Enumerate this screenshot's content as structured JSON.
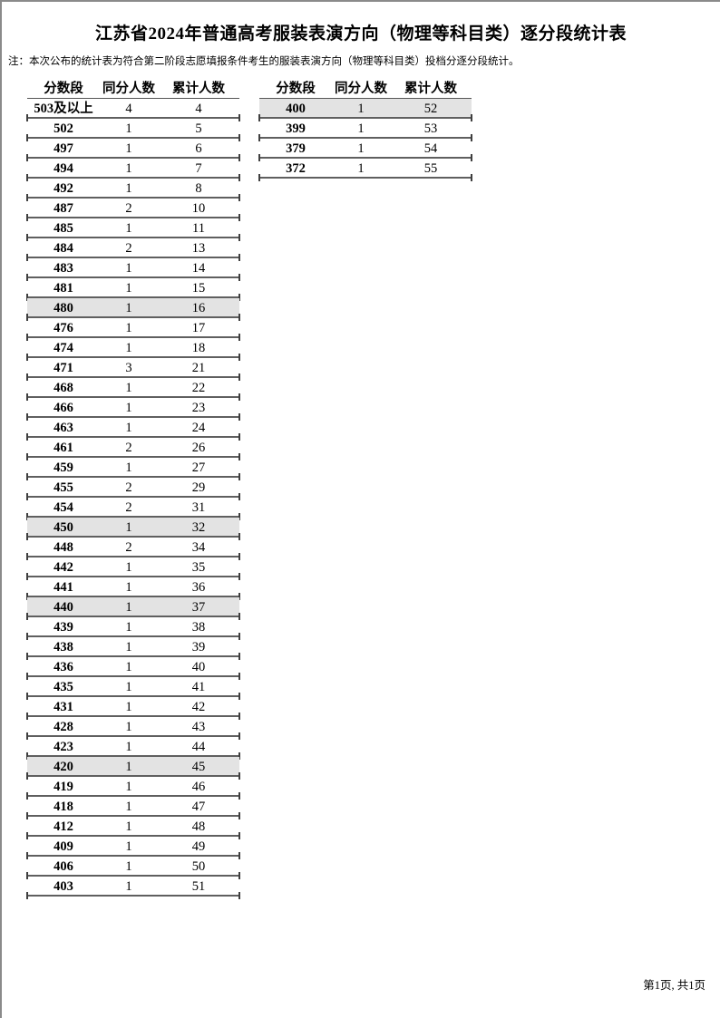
{
  "page": {
    "title": "江苏省2024年普通高考服装表演方向（物理等科目类）逐分段统计表",
    "note": "注：本次公布的统计表为符合第二阶段志愿填报条件考生的服装表演方向（物理等科目类）投档分逐分段统计。",
    "footer": "第1页, 共1页"
  },
  "colors": {
    "row_line": "#5f5f5f",
    "tick": "#3f3f3f",
    "header_line": "#555555",
    "shaded_row_bg": "#e3e3e3",
    "page_border": "#8a8a8a"
  },
  "tables": [
    {
      "headers": [
        "分数段",
        "同分人数",
        "累计人数"
      ],
      "rows": [
        {
          "score": "503及以上",
          "count": "4",
          "cumulative": "4",
          "shaded": false
        },
        {
          "score": "502",
          "count": "1",
          "cumulative": "5",
          "shaded": false
        },
        {
          "score": "497",
          "count": "1",
          "cumulative": "6",
          "shaded": false
        },
        {
          "score": "494",
          "count": "1",
          "cumulative": "7",
          "shaded": false
        },
        {
          "score": "492",
          "count": "1",
          "cumulative": "8",
          "shaded": false
        },
        {
          "score": "487",
          "count": "2",
          "cumulative": "10",
          "shaded": false
        },
        {
          "score": "485",
          "count": "1",
          "cumulative": "11",
          "shaded": false
        },
        {
          "score": "484",
          "count": "2",
          "cumulative": "13",
          "shaded": false
        },
        {
          "score": "483",
          "count": "1",
          "cumulative": "14",
          "shaded": false
        },
        {
          "score": "481",
          "count": "1",
          "cumulative": "15",
          "shaded": false
        },
        {
          "score": "480",
          "count": "1",
          "cumulative": "16",
          "shaded": true
        },
        {
          "score": "476",
          "count": "1",
          "cumulative": "17",
          "shaded": false
        },
        {
          "score": "474",
          "count": "1",
          "cumulative": "18",
          "shaded": false
        },
        {
          "score": "471",
          "count": "3",
          "cumulative": "21",
          "shaded": false
        },
        {
          "score": "468",
          "count": "1",
          "cumulative": "22",
          "shaded": false
        },
        {
          "score": "466",
          "count": "1",
          "cumulative": "23",
          "shaded": false
        },
        {
          "score": "463",
          "count": "1",
          "cumulative": "24",
          "shaded": false
        },
        {
          "score": "461",
          "count": "2",
          "cumulative": "26",
          "shaded": false
        },
        {
          "score": "459",
          "count": "1",
          "cumulative": "27",
          "shaded": false
        },
        {
          "score": "455",
          "count": "2",
          "cumulative": "29",
          "shaded": false
        },
        {
          "score": "454",
          "count": "2",
          "cumulative": "31",
          "shaded": false
        },
        {
          "score": "450",
          "count": "1",
          "cumulative": "32",
          "shaded": true
        },
        {
          "score": "448",
          "count": "2",
          "cumulative": "34",
          "shaded": false
        },
        {
          "score": "442",
          "count": "1",
          "cumulative": "35",
          "shaded": false
        },
        {
          "score": "441",
          "count": "1",
          "cumulative": "36",
          "shaded": false
        },
        {
          "score": "440",
          "count": "1",
          "cumulative": "37",
          "shaded": true
        },
        {
          "score": "439",
          "count": "1",
          "cumulative": "38",
          "shaded": false
        },
        {
          "score": "438",
          "count": "1",
          "cumulative": "39",
          "shaded": false
        },
        {
          "score": "436",
          "count": "1",
          "cumulative": "40",
          "shaded": false
        },
        {
          "score": "435",
          "count": "1",
          "cumulative": "41",
          "shaded": false
        },
        {
          "score": "431",
          "count": "1",
          "cumulative": "42",
          "shaded": false
        },
        {
          "score": "428",
          "count": "1",
          "cumulative": "43",
          "shaded": false
        },
        {
          "score": "423",
          "count": "1",
          "cumulative": "44",
          "shaded": false
        },
        {
          "score": "420",
          "count": "1",
          "cumulative": "45",
          "shaded": true
        },
        {
          "score": "419",
          "count": "1",
          "cumulative": "46",
          "shaded": false
        },
        {
          "score": "418",
          "count": "1",
          "cumulative": "47",
          "shaded": false
        },
        {
          "score": "412",
          "count": "1",
          "cumulative": "48",
          "shaded": false
        },
        {
          "score": "409",
          "count": "1",
          "cumulative": "49",
          "shaded": false
        },
        {
          "score": "406",
          "count": "1",
          "cumulative": "50",
          "shaded": false
        },
        {
          "score": "403",
          "count": "1",
          "cumulative": "51",
          "shaded": false
        }
      ]
    },
    {
      "headers": [
        "分数段",
        "同分人数",
        "累计人数"
      ],
      "rows": [
        {
          "score": "400",
          "count": "1",
          "cumulative": "52",
          "shaded": true
        },
        {
          "score": "399",
          "count": "1",
          "cumulative": "53",
          "shaded": false
        },
        {
          "score": "379",
          "count": "1",
          "cumulative": "54",
          "shaded": false
        },
        {
          "score": "372",
          "count": "1",
          "cumulative": "55",
          "shaded": false
        }
      ]
    }
  ]
}
